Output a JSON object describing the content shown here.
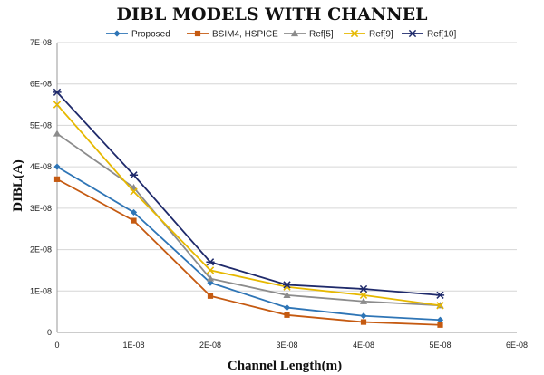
{
  "chart_data": {
    "type": "line",
    "title": "DIBL MODELS WITH CHANNEL",
    "xlabel": "Channel Length(m)",
    "ylabel": "DIBL(A)",
    "xlim": [
      0,
      6e-08
    ],
    "ylim": [
      0,
      7e-08
    ],
    "x_ticks": [
      0,
      1e-08,
      2e-08,
      3e-08,
      4e-08,
      5e-08,
      6e-08
    ],
    "x_tick_labels": [
      "0",
      "1E-08",
      "2E-08",
      "3E-08",
      "4E-08",
      "5E-08",
      "6E-08"
    ],
    "y_ticks": [
      0,
      1e-08,
      2e-08,
      3e-08,
      4e-08,
      5e-08,
      6e-08,
      7e-08
    ],
    "y_tick_labels": [
      "0",
      "1E-08",
      "2E-08",
      "3E-08",
      "4E-08",
      "5E-08",
      "6E-08",
      "7E-08"
    ],
    "grid": "horizontal",
    "legend_position": "top",
    "x": [
      0,
      1e-08,
      2e-08,
      3e-08,
      4e-08,
      5e-08
    ],
    "series": [
      {
        "name": "Proposed",
        "color": "#2e75b6",
        "marker": "diamond",
        "values": [
          4e-08,
          2.9e-08,
          1.2e-08,
          6e-09,
          4e-09,
          3e-09
        ]
      },
      {
        "name": "BSIM4, HSPICE",
        "color": "#c55a11",
        "marker": "square",
        "values": [
          3.7e-08,
          2.7e-08,
          8.8e-09,
          4.2e-09,
          2.5e-09,
          1.8e-09
        ]
      },
      {
        "name": "Ref[5]",
        "color": "#8c8c8c",
        "marker": "triangle",
        "values": [
          4.8e-08,
          3.5e-08,
          1.3e-08,
          9e-09,
          7.5e-09,
          6.5e-09
        ]
      },
      {
        "name": "Ref[9]",
        "color": "#e6b800",
        "marker": "x",
        "values": [
          5.5e-08,
          3.4e-08,
          1.5e-08,
          1.1e-08,
          9e-09,
          6.5e-09
        ]
      },
      {
        "name": "Ref[10]",
        "color": "#1f2a6b",
        "marker": "star",
        "values": [
          5.8e-08,
          3.8e-08,
          1.7e-08,
          1.15e-08,
          1.05e-08,
          9e-09
        ]
      }
    ]
  }
}
